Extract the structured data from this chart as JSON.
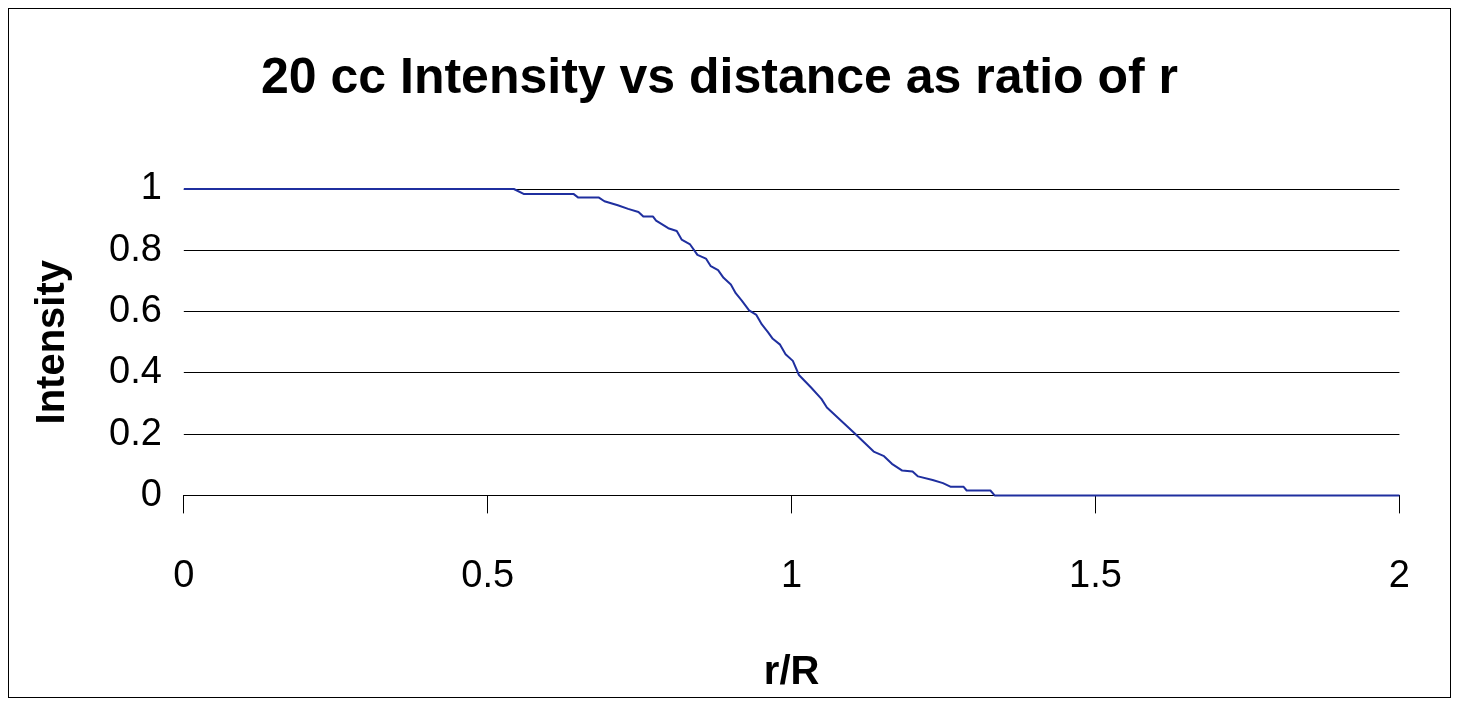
{
  "chart_data": {
    "type": "line",
    "title": "20 cc Intensity vs distance as ratio of r",
    "xlabel": "r/R",
    "ylabel": "Intensity",
    "x": [
      0,
      0.543,
      0.559,
      0.641,
      0.649,
      0.683,
      0.692,
      0.714,
      0.731,
      0.748,
      0.756,
      0.772,
      0.777,
      0.797,
      0.811,
      0.819,
      0.833,
      0.845,
      0.859,
      0.867,
      0.879,
      0.888,
      0.9,
      0.908,
      0.918,
      0.93,
      0.942,
      0.951,
      0.961,
      0.969,
      0.981,
      0.99,
      1.002,
      1.012,
      1.032,
      1.049,
      1.058,
      1.104,
      1.135,
      1.152,
      1.165,
      1.182,
      1.199,
      1.208,
      1.232,
      1.249,
      1.262,
      1.283,
      1.288,
      1.327,
      1.334,
      2
    ],
    "series": [
      {
        "color": "#1f2f9f",
        "values": [
          1,
          1,
          0.984,
          0.984,
          0.972,
          0.972,
          0.96,
          0.947,
          0.935,
          0.925,
          0.91,
          0.91,
          0.897,
          0.872,
          0.863,
          0.835,
          0.819,
          0.785,
          0.773,
          0.748,
          0.735,
          0.71,
          0.688,
          0.66,
          0.636,
          0.604,
          0.589,
          0.558,
          0.533,
          0.511,
          0.492,
          0.461,
          0.439,
          0.393,
          0.352,
          0.315,
          0.287,
          0.202,
          0.143,
          0.128,
          0.103,
          0.081,
          0.078,
          0.062,
          0.05,
          0.04,
          0.028,
          0.028,
          0.016,
          0.016,
          0,
          0
        ]
      }
    ],
    "xlim": [
      0,
      2
    ],
    "xticks": [
      0,
      0.5,
      1,
      1.5,
      2
    ],
    "ylim": [
      0,
      1
    ],
    "yticks": [
      0,
      0.2,
      0.4,
      0.6,
      0.8,
      1
    ],
    "grid": "y",
    "legend": false,
    "marker": "none",
    "line_style": "solid"
  }
}
